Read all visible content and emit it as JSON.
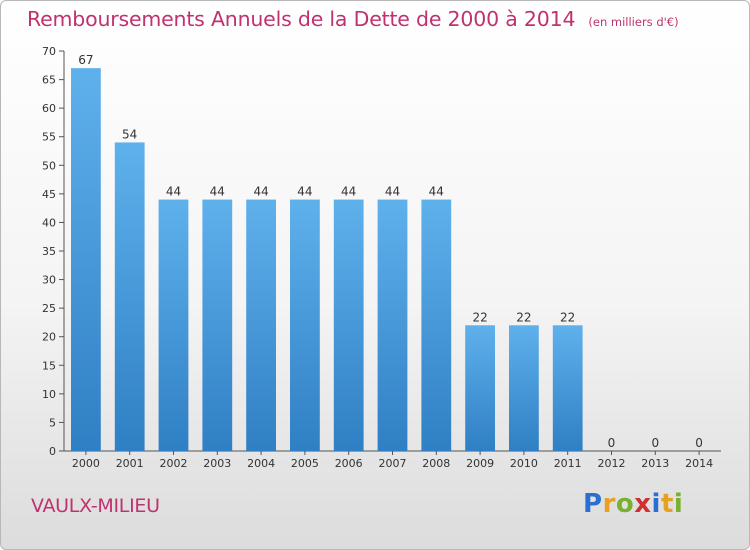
{
  "chart_data": {
    "type": "bar",
    "title": "Remboursements Annuels de la Dette de 2000 à 2014",
    "unit": "(en milliers d'€)",
    "categories": [
      "2000",
      "2001",
      "2002",
      "2003",
      "2004",
      "2005",
      "2006",
      "2007",
      "2008",
      "2009",
      "2010",
      "2011",
      "2012",
      "2013",
      "2014"
    ],
    "values": [
      67,
      54,
      44,
      44,
      44,
      44,
      44,
      44,
      44,
      22,
      22,
      22,
      0,
      0,
      0
    ],
    "data_labels": [
      "67",
      "54",
      "44",
      "44",
      "44",
      "44",
      "44",
      "44",
      "44",
      "22",
      "22",
      "22",
      "0",
      "0",
      "0"
    ],
    "ylim": [
      0,
      70
    ],
    "yticks": [
      0,
      5,
      10,
      15,
      20,
      25,
      30,
      35,
      40,
      45,
      50,
      55,
      60,
      65,
      70
    ],
    "grid": false,
    "bar_color": "#4a9fe0"
  },
  "footer": {
    "commune": "VAULX-MILIEU"
  },
  "logo": {
    "letters": [
      "P",
      "r",
      "o",
      "x",
      "i",
      "t",
      "i"
    ],
    "colors": [
      "#2b6fd0",
      "#e8a020",
      "#7ab030",
      "#d03030",
      "#2b6fd0",
      "#e8a020",
      "#7ab030"
    ]
  },
  "colors": {
    "title": "#c0326f",
    "axis": "#555555"
  }
}
